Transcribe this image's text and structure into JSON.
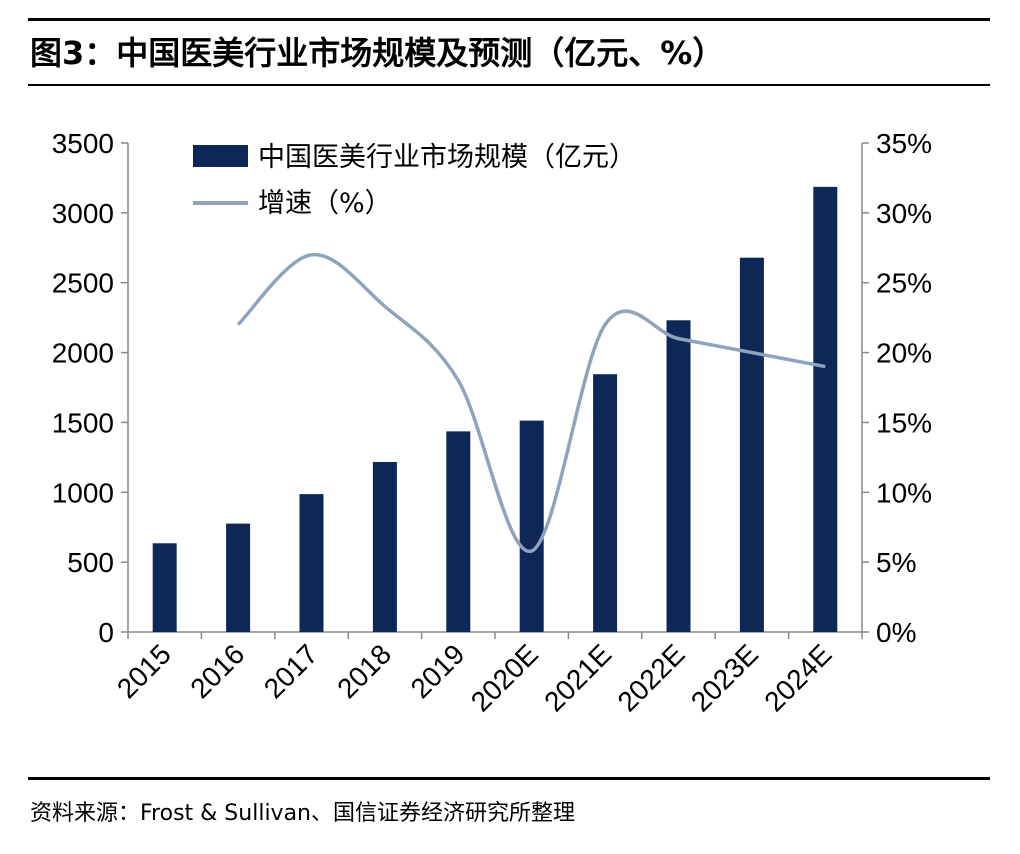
{
  "figure": {
    "title": "图3：中国医美行业市场规模及预测（亿元、%）",
    "source": "资料来源：Frost & Sullivan、国信证券经济研究所整理"
  },
  "chart_data": {
    "type": "bar",
    "categories": [
      "2015",
      "2016",
      "2017",
      "2018",
      "2019",
      "2020E",
      "2021E",
      "2022E",
      "2023E",
      "2024E"
    ],
    "series": [
      {
        "name": "中国医美行业市场规模（亿元）",
        "type": "bar",
        "axis": "left",
        "color": "#0d2857",
        "values": [
          635,
          776,
          987,
          1217,
          1436,
          1513,
          1845,
          2231,
          2679,
          3186
        ]
      },
      {
        "name": "增速（%）",
        "type": "line",
        "axis": "right",
        "color": "#8fa3bd",
        "values": [
          null,
          22.0,
          27.0,
          23.3,
          18.0,
          5.8,
          22.0,
          21.0,
          20.0,
          19.0
        ]
      }
    ],
    "y_left": {
      "min": 0,
      "max": 3500,
      "ticks": [
        0,
        500,
        1000,
        1500,
        2000,
        2500,
        3000,
        3500
      ]
    },
    "y_right": {
      "min": 0,
      "max": 35,
      "ticks": [
        "0%",
        "5%",
        "10%",
        "15%",
        "20%",
        "25%",
        "30%",
        "35%"
      ]
    },
    "legend_position": "top-left",
    "grid": false
  }
}
